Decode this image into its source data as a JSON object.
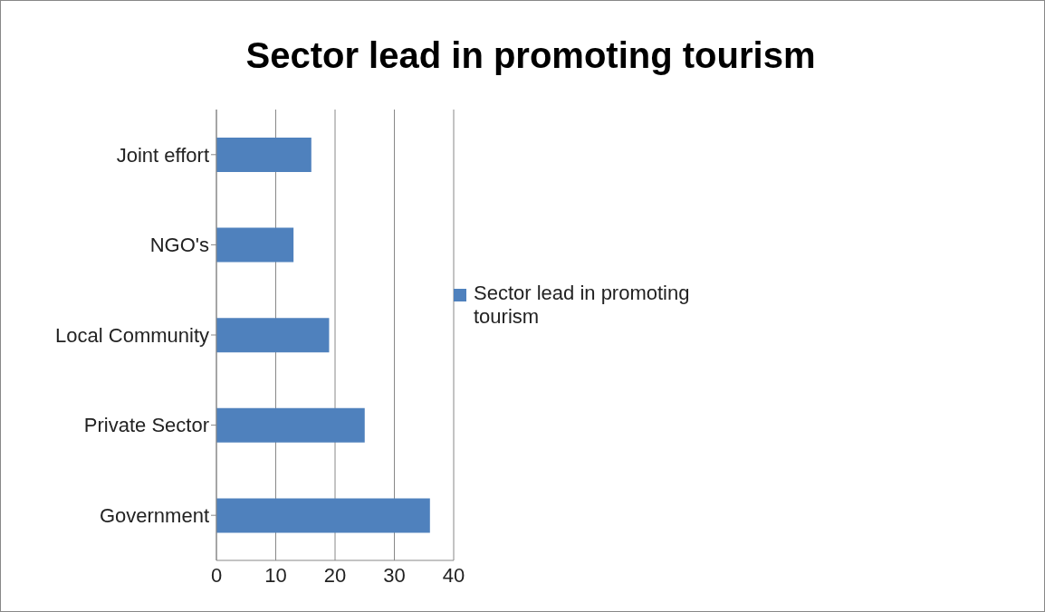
{
  "chart_data": {
    "type": "bar",
    "orientation": "horizontal",
    "title": "Sector lead in promoting tourism",
    "categories": [
      "Joint effort",
      "NGO's",
      "Local Community",
      "Private Sector",
      "Government"
    ],
    "series": [
      {
        "name": "Sector lead in promoting tourism",
        "color": "#4f81bd",
        "values": [
          16,
          13,
          19,
          25,
          36
        ]
      }
    ],
    "xlim": [
      0,
      40
    ],
    "xticks": [
      0,
      10,
      20,
      30,
      40
    ],
    "grid": "x",
    "legend": "right"
  }
}
